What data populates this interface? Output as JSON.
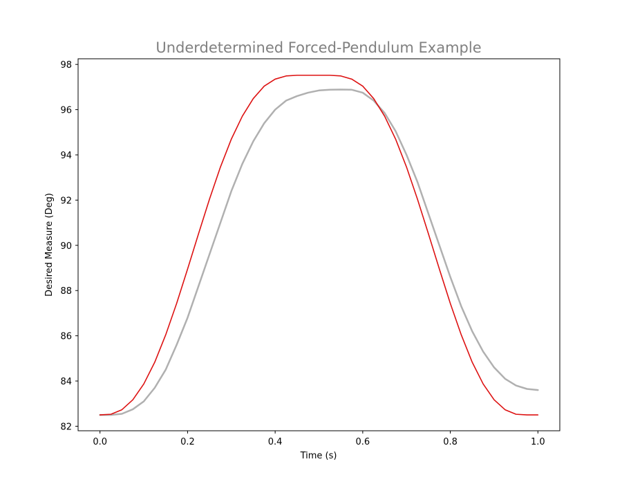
{
  "chart_data": {
    "type": "line",
    "title": "Underdetermined Forced-Pendulum Example",
    "xlabel": "Time (s)",
    "ylabel": "Desired Measure (Deg)",
    "xlim": [
      -0.05,
      1.05
    ],
    "ylim": [
      81.8,
      98.25
    ],
    "xticks": [
      0.0,
      0.2,
      0.4,
      0.6,
      0.8,
      1.0
    ],
    "xtick_labels": [
      "0.0",
      "0.2",
      "0.4",
      "0.6",
      "0.8",
      "1.0"
    ],
    "yticks": [
      82,
      84,
      86,
      88,
      90,
      92,
      94,
      96,
      98
    ],
    "ytick_labels": [
      "82",
      "84",
      "86",
      "88",
      "90",
      "92",
      "94",
      "96",
      "98"
    ],
    "grid": false,
    "legend": false,
    "colors": {
      "title": "#808080",
      "series_red": "#dd1111",
      "series_gray": "#b0b0b0"
    },
    "series": [
      {
        "color": "#dd1111",
        "linewidth": 1.6,
        "x": [
          0.0,
          0.025,
          0.05,
          0.075,
          0.1,
          0.125,
          0.15,
          0.175,
          0.2,
          0.225,
          0.25,
          0.275,
          0.3,
          0.325,
          0.35,
          0.375,
          0.4,
          0.425,
          0.45,
          0.475,
          0.5,
          0.525,
          0.55,
          0.575,
          0.6,
          0.625,
          0.65,
          0.675,
          0.7,
          0.725,
          0.75,
          0.775,
          0.8,
          0.825,
          0.85,
          0.875,
          0.9,
          0.925,
          0.95,
          0.975,
          1.0
        ],
        "y": [
          82.5,
          82.53,
          82.73,
          83.17,
          83.87,
          84.83,
          86.04,
          87.43,
          88.95,
          90.51,
          92.04,
          93.46,
          94.7,
          95.71,
          96.49,
          97.04,
          97.35,
          97.49,
          97.52,
          97.52,
          97.52,
          97.52,
          97.49,
          97.35,
          97.04,
          96.49,
          95.71,
          94.7,
          93.46,
          92.04,
          90.51,
          88.95,
          87.43,
          86.04,
          84.83,
          83.87,
          83.17,
          82.73,
          82.53,
          82.5,
          82.5
        ]
      },
      {
        "color": "#b0b0b0",
        "linewidth": 2.5,
        "x": [
          0.0,
          0.025,
          0.05,
          0.075,
          0.1,
          0.125,
          0.15,
          0.175,
          0.2,
          0.225,
          0.25,
          0.275,
          0.3,
          0.325,
          0.35,
          0.375,
          0.4,
          0.425,
          0.45,
          0.475,
          0.5,
          0.525,
          0.55,
          0.575,
          0.6,
          0.625,
          0.65,
          0.675,
          0.7,
          0.725,
          0.75,
          0.775,
          0.8,
          0.825,
          0.85,
          0.875,
          0.9,
          0.925,
          0.95,
          0.975,
          1.0
        ],
        "y": [
          82.5,
          82.5,
          82.55,
          82.75,
          83.1,
          83.7,
          84.5,
          85.6,
          86.8,
          88.2,
          89.6,
          91.0,
          92.4,
          93.6,
          94.6,
          95.4,
          96.0,
          96.4,
          96.6,
          96.75,
          96.85,
          96.88,
          96.89,
          96.88,
          96.75,
          96.4,
          95.85,
          95.05,
          94.0,
          92.8,
          91.4,
          90.0,
          88.6,
          87.3,
          86.2,
          85.3,
          84.6,
          84.1,
          83.8,
          83.65,
          83.6
        ]
      }
    ]
  }
}
